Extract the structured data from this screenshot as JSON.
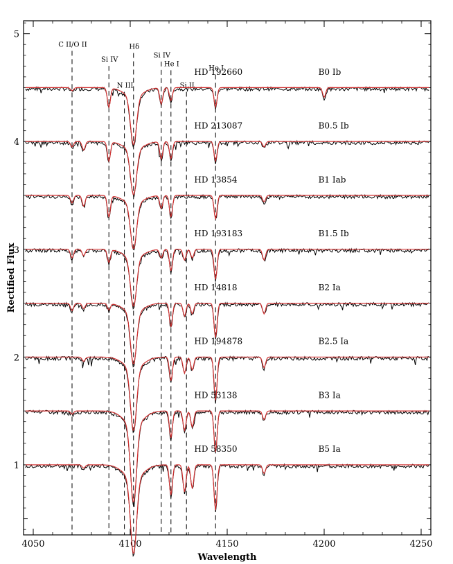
{
  "chart_data": {
    "type": "line",
    "title": "",
    "xlabel": "Wavelength",
    "ylabel": "Rectified Flux",
    "xlim": [
      4045,
      4255
    ],
    "ylim": [
      0.35,
      5.12
    ],
    "x_ticks": [
      4050,
      4100,
      4150,
      4200,
      4250
    ],
    "y_ticks": [
      1,
      2,
      3,
      4,
      5
    ],
    "grid": false,
    "legend": "none",
    "observed_color": "#000000",
    "model_color": "#d23232",
    "line_markers": [
      {
        "label": "C II/O II",
        "x": 4070,
        "label_y": 4.88
      },
      {
        "label": "Si IV",
        "x": 4089,
        "label_y": 4.74
      },
      {
        "label": "N III",
        "x": 4097,
        "label_y": 4.5
      },
      {
        "label": "Hδ",
        "x": 4101.7,
        "label_y": 4.86
      },
      {
        "label": "Si IV",
        "x": 4116,
        "label_y": 4.78
      },
      {
        "label": "He I",
        "x": 4121,
        "label_y": 4.7
      },
      {
        "label": "Si II",
        "x": 4129,
        "label_y": 4.5
      },
      {
        "label": "He I",
        "x": 4144,
        "label_y": 4.66
      }
    ],
    "series": [
      {
        "star": "HD 192660",
        "spectral_type": "B0 Ib",
        "continuum": 4.5,
        "label_y": 4.62,
        "features": [
          [
            4070,
            0.03
          ],
          [
            4089,
            0.18
          ],
          [
            4101.7,
            0.45
          ],
          [
            4116,
            0.15
          ],
          [
            4121,
            0.12
          ],
          [
            4144,
            0.18
          ],
          [
            4200,
            0.09
          ]
        ]
      },
      {
        "star": "HD 213087",
        "spectral_type": "B0.5 Ib",
        "continuum": 4.0,
        "label_y": 4.12,
        "features": [
          [
            4070,
            0.05
          ],
          [
            4076,
            0.08
          ],
          [
            4089,
            0.18
          ],
          [
            4101.7,
            0.42
          ],
          [
            4116,
            0.16
          ],
          [
            4121,
            0.16
          ],
          [
            4144,
            0.18
          ],
          [
            4169,
            0.05
          ]
        ]
      },
      {
        "star": "HD 13854",
        "spectral_type": "B1 Iab",
        "continuum": 3.5,
        "label_y": 3.62,
        "features": [
          [
            4070,
            0.07
          ],
          [
            4076,
            0.1
          ],
          [
            4089,
            0.2
          ],
          [
            4101.7,
            0.42
          ],
          [
            4116,
            0.12
          ],
          [
            4121,
            0.2
          ],
          [
            4144,
            0.22
          ],
          [
            4169,
            0.06
          ]
        ]
      },
      {
        "star": "HD 193183",
        "spectral_type": "B1.5 Ib",
        "continuum": 3.0,
        "label_y": 3.12,
        "features": [
          [
            4070,
            0.08
          ],
          [
            4076,
            0.06
          ],
          [
            4089,
            0.12
          ],
          [
            4101.7,
            0.45
          ],
          [
            4116,
            0.08
          ],
          [
            4121,
            0.2
          ],
          [
            4128,
            0.1
          ],
          [
            4132,
            0.08
          ],
          [
            4144,
            0.28
          ],
          [
            4169,
            0.1
          ]
        ]
      },
      {
        "star": "HD 14818",
        "spectral_type": "B2 Ia",
        "continuum": 2.5,
        "label_y": 2.62,
        "features": [
          [
            4070,
            0.07
          ],
          [
            4076,
            0.05
          ],
          [
            4089,
            0.06
          ],
          [
            4101.7,
            0.48
          ],
          [
            4121,
            0.22
          ],
          [
            4128,
            0.12
          ],
          [
            4132,
            0.1
          ],
          [
            4144,
            0.32
          ],
          [
            4169,
            0.1
          ]
        ]
      },
      {
        "star": "HD 194878",
        "spectral_type": "B2.5 Ia",
        "continuum": 2.0,
        "label_y": 2.12,
        "features": [
          [
            4076,
            0.04
          ],
          [
            4101.7,
            0.58
          ],
          [
            4121,
            0.22
          ],
          [
            4128,
            0.15
          ],
          [
            4132,
            0.12
          ],
          [
            4144,
            0.4
          ],
          [
            4169,
            0.1
          ]
        ]
      },
      {
        "star": "HD 53138",
        "spectral_type": "B3 Ia",
        "continuum": 1.5,
        "label_y": 1.62,
        "features": [
          [
            4070,
            0.03
          ],
          [
            4101.7,
            0.72
          ],
          [
            4121,
            0.25
          ],
          [
            4128,
            0.18
          ],
          [
            4132,
            0.15
          ],
          [
            4144,
            0.38
          ],
          [
            4169,
            0.08
          ]
        ]
      },
      {
        "star": "HD 58350",
        "spectral_type": "B5 Ia",
        "continuum": 1.0,
        "label_y": 1.12,
        "features": [
          [
            4076,
            0.03
          ],
          [
            4101.7,
            0.7
          ],
          [
            4121,
            0.28
          ],
          [
            4128,
            0.25
          ],
          [
            4132,
            0.22
          ],
          [
            4144,
            0.42
          ],
          [
            4169,
            0.08
          ]
        ]
      }
    ]
  }
}
